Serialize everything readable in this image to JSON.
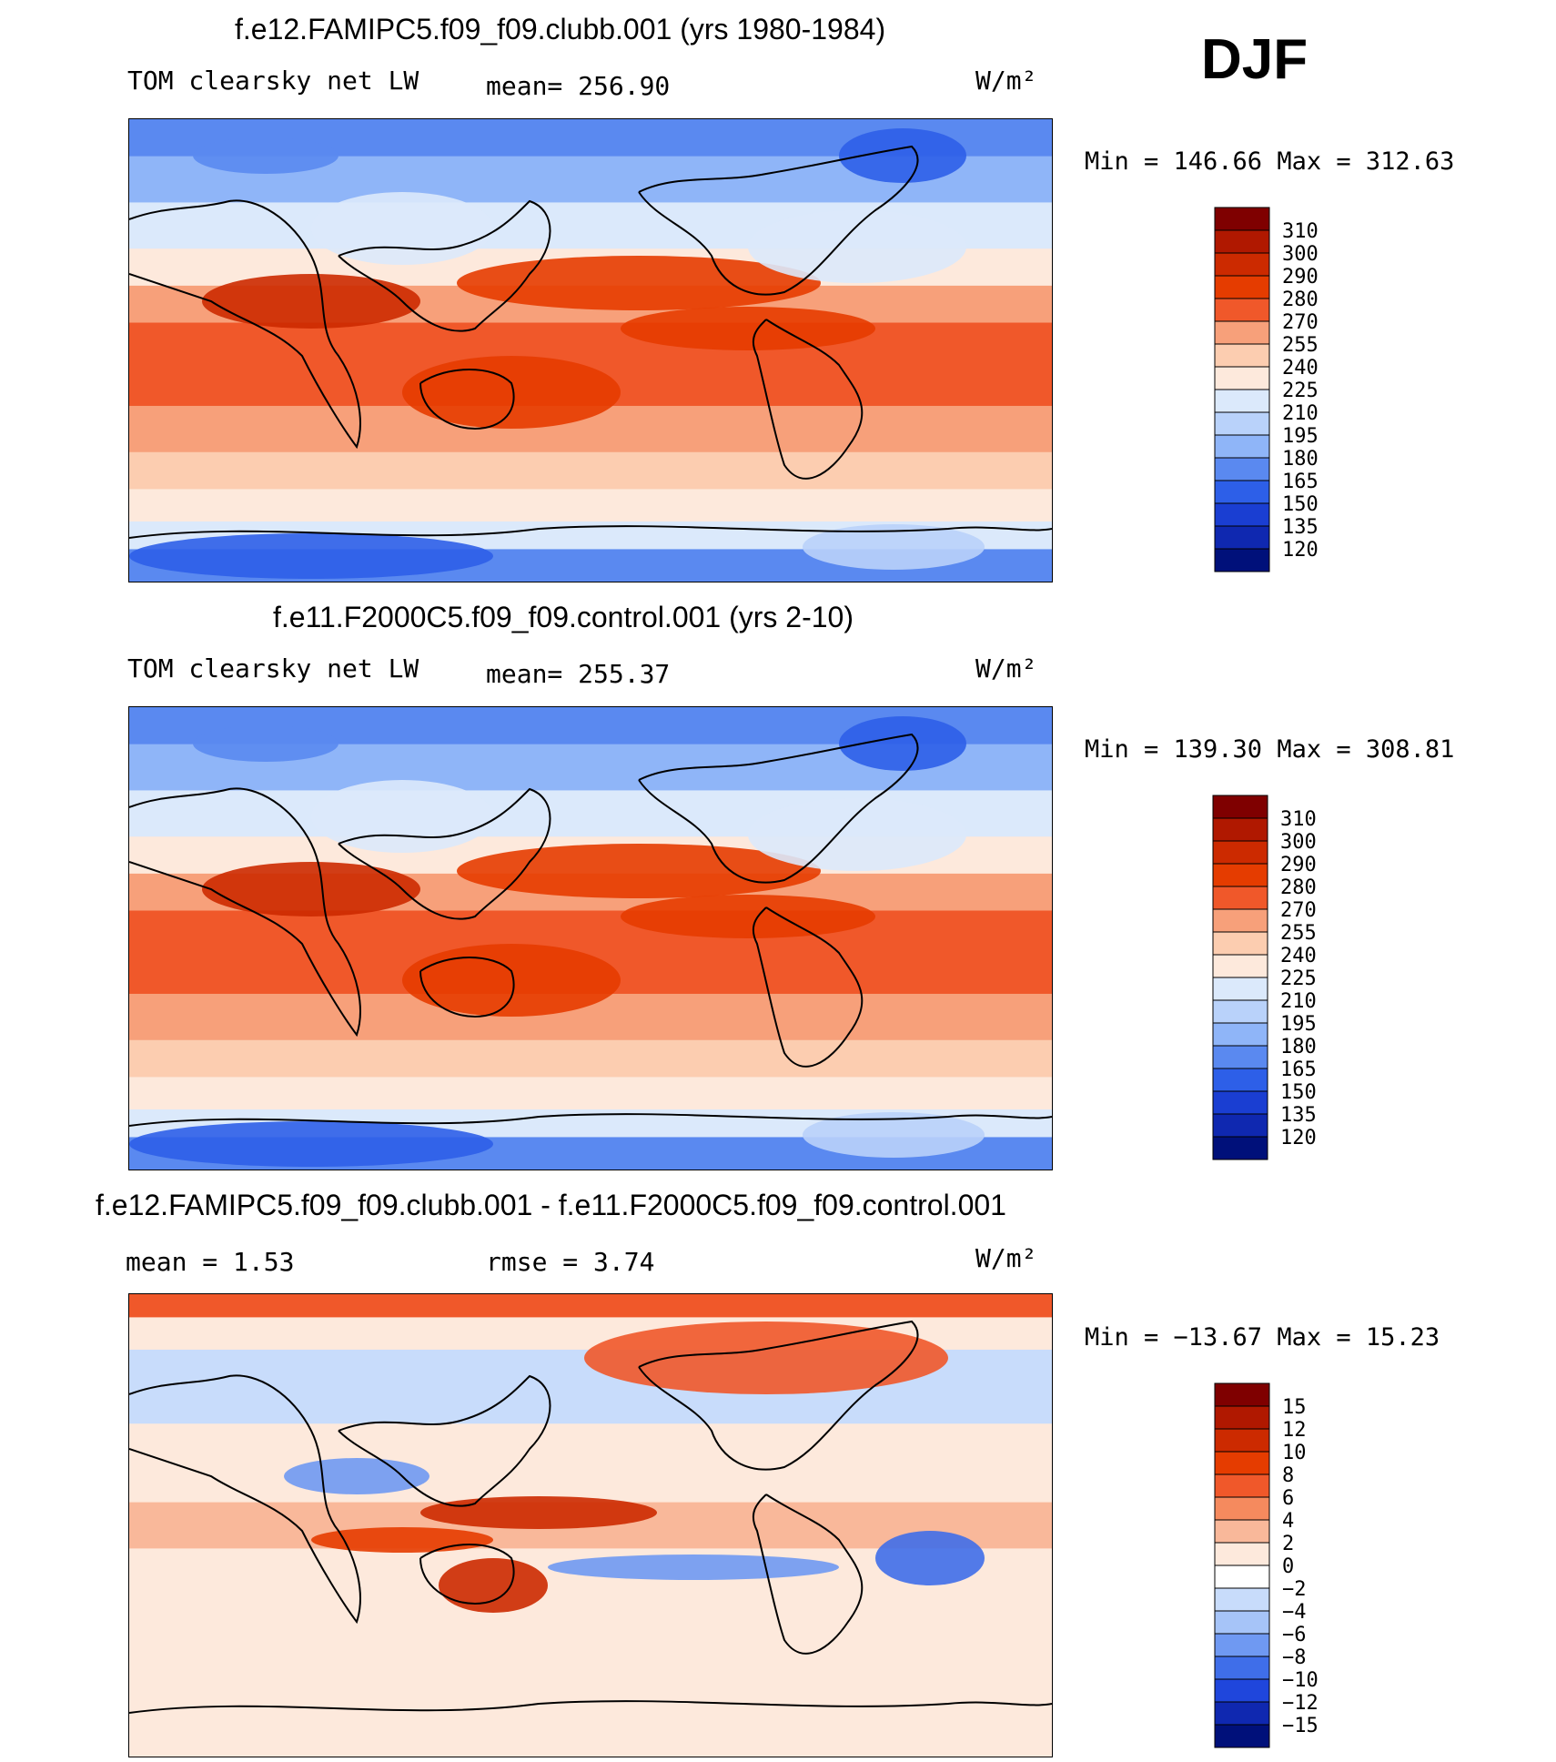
{
  "season": "DJF",
  "panels": [
    {
      "title": "f.e12.FAMIPC5.f09_f09.clubb.001 (yrs 1980-1984)",
      "left": "TOM clearsky net LW",
      "mid": "mean= 256.90",
      "units": "W/m²",
      "minmax": "Min = 146.66 Max = 312.63",
      "kind": "abs",
      "colorbar": {
        "labels": [
          "310",
          "300",
          "290",
          "280",
          "270",
          "255",
          "240",
          "225",
          "210",
          "195",
          "180",
          "165",
          "150",
          "135",
          "120"
        ],
        "colors": [
          "#7f0000",
          "#b01800",
          "#cc2a00",
          "#e53c00",
          "#f0582a",
          "#f7a07a",
          "#fccdb0",
          "#fde9dc",
          "#dbe9fb",
          "#b9d2fa",
          "#8fb5f8",
          "#5a89f0",
          "#2d5fe8",
          "#1a3ed2",
          "#0f28b0",
          "#00107a"
        ]
      }
    },
    {
      "title": "f.e11.F2000C5.f09_f09.control.001 (yrs 2-10)",
      "left": "TOM clearsky net LW",
      "mid": "mean= 255.37",
      "units": "W/m²",
      "minmax": "Min = 139.30 Max = 308.81",
      "kind": "abs",
      "colorbar": {
        "labels": [
          "310",
          "300",
          "290",
          "280",
          "270",
          "255",
          "240",
          "225",
          "210",
          "195",
          "180",
          "165",
          "150",
          "135",
          "120"
        ],
        "colors": [
          "#7f0000",
          "#b01800",
          "#cc2a00",
          "#e53c00",
          "#f0582a",
          "#f7a07a",
          "#fccdb0",
          "#fde9dc",
          "#dbe9fb",
          "#b9d2fa",
          "#8fb5f8",
          "#5a89f0",
          "#2d5fe8",
          "#1a3ed2",
          "#0f28b0",
          "#00107a"
        ]
      }
    },
    {
      "title": "f.e12.FAMIPC5.f09_f09.clubb.001 - f.e11.F2000C5.f09_f09.control.001",
      "left": "mean =    1.53",
      "mid": "rmse =    3.74",
      "units": "W/m²",
      "minmax": "Min = −13.67 Max =  15.23",
      "kind": "diff",
      "colorbar": {
        "labels": [
          "15",
          "12",
          "10",
          "8",
          "6",
          "4",
          "2",
          "0",
          "−2",
          "−4",
          "−6",
          "−8",
          "−10",
          "−12",
          "−15"
        ],
        "colors": [
          "#7f0000",
          "#b01800",
          "#cc2a00",
          "#e53c00",
          "#f0582a",
          "#f58a5e",
          "#f9b89a",
          "#fde9dc",
          "#ffffff",
          "#c8dcfb",
          "#a6c4f8",
          "#6f99f2",
          "#3f6ee9",
          "#1f46dc",
          "#0f28b0",
          "#00107a"
        ]
      }
    }
  ]
}
